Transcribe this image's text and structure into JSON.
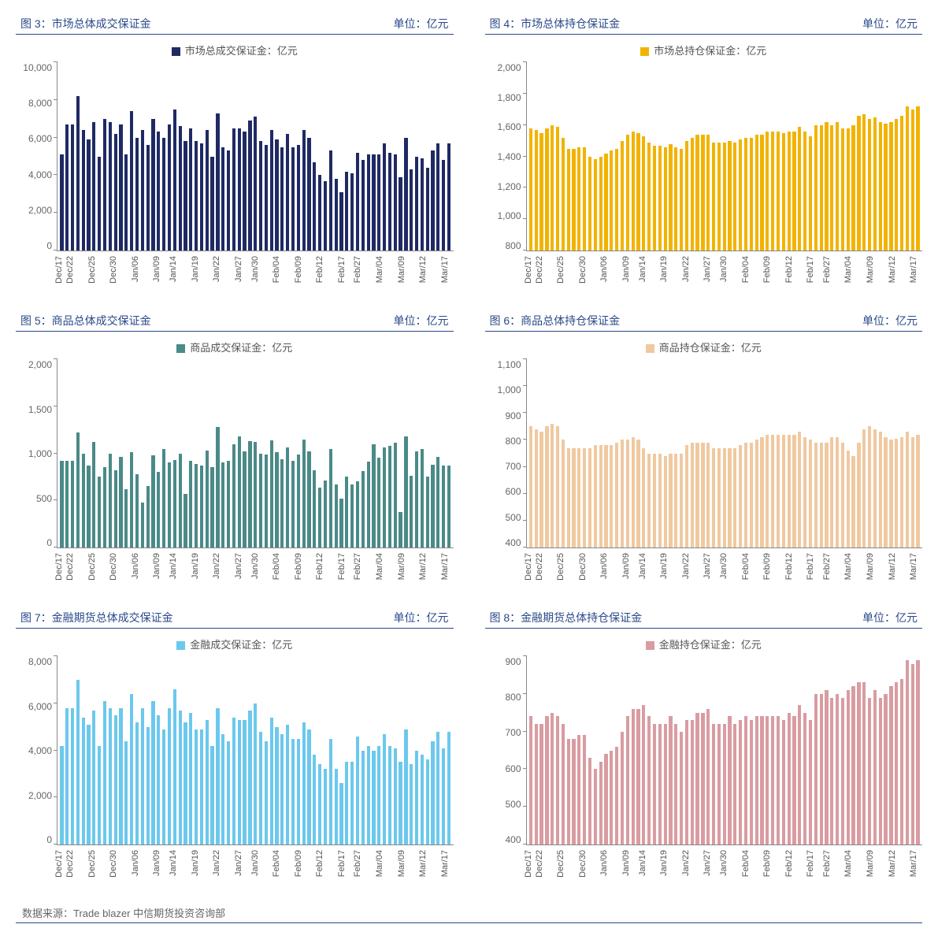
{
  "footer": "数据来源：Trade blazer  中信期货投资咨询部",
  "title_border_color": "#2a4a8a",
  "title_text_color": "#2a4a8a",
  "x_categories": [
    "Dec/17",
    "Dec/22",
    "Dec/25",
    "Dec/30",
    "Jan/06",
    "Jan/09",
    "Jan/14",
    "Jan/19",
    "Jan/22",
    "Jan/27",
    "Jan/30",
    "Feb/04",
    "Feb/09",
    "Feb/12",
    "Feb/17",
    "Feb/27",
    "Mar/04",
    "Mar/09",
    "Mar/12",
    "Mar/17"
  ],
  "charts": [
    {
      "id": "chart3",
      "type": "bar",
      "title": "图 3：市场总体成交保证金",
      "unit": "单位：亿元",
      "legend": "市场总成交保证金：亿元",
      "color": "#1f2a64",
      "y_min": 0,
      "y_max": 10000,
      "y_ticks": [
        0,
        2000,
        4000,
        6000,
        8000,
        10000
      ],
      "y_tick_labels": [
        "0",
        "2,000",
        "4,000",
        "6,000",
        "8,000",
        "10,000"
      ],
      "values": [
        5100,
        6700,
        6700,
        8200,
        6400,
        5900,
        6800,
        5000,
        7000,
        6800,
        6200,
        6700,
        5100,
        7400,
        6000,
        6400,
        5600,
        7000,
        6300,
        6000,
        6700,
        7500,
        6600,
        5800,
        6500,
        5800,
        5700,
        6400,
        5000,
        7300,
        5500,
        5300,
        6500,
        6500,
        6300,
        6900,
        7100,
        5800,
        5600,
        6400,
        5900,
        5500,
        6200,
        5500,
        5600,
        6400,
        6000,
        4700,
        4000,
        3700,
        5300,
        3800,
        3100,
        4200,
        4100,
        5200,
        4800,
        5100,
        5100,
        5100,
        5700,
        5200,
        5100,
        3900,
        6000,
        4300,
        5000,
        4900,
        4400,
        5300,
        5700,
        4800,
        5700
      ]
    },
    {
      "id": "chart4",
      "type": "bar",
      "title": "图 4：市场总体持仓保证金",
      "unit": "单位：亿元",
      "legend": "市场总持仓保证金：亿元",
      "color": "#f2b300",
      "y_min": 800,
      "y_max": 2000,
      "y_ticks": [
        800,
        1000,
        1200,
        1400,
        1600,
        1800,
        2000
      ],
      "y_tick_labels": [
        "800",
        "1,000",
        "1,200",
        "1,400",
        "1,600",
        "1,800",
        "2,000"
      ],
      "values": [
        1580,
        1570,
        1550,
        1580,
        1600,
        1590,
        1520,
        1450,
        1450,
        1460,
        1460,
        1400,
        1380,
        1400,
        1420,
        1440,
        1450,
        1500,
        1540,
        1560,
        1550,
        1530,
        1490,
        1470,
        1470,
        1460,
        1480,
        1460,
        1450,
        1500,
        1520,
        1540,
        1540,
        1540,
        1490,
        1490,
        1490,
        1500,
        1490,
        1510,
        1520,
        1520,
        1540,
        1540,
        1560,
        1560,
        1560,
        1550,
        1560,
        1560,
        1590,
        1560,
        1530,
        1600,
        1600,
        1620,
        1600,
        1620,
        1580,
        1580,
        1600,
        1660,
        1670,
        1640,
        1650,
        1620,
        1610,
        1620,
        1640,
        1660,
        1720,
        1700,
        1720
      ]
    },
    {
      "id": "chart5",
      "type": "bar",
      "title": "图 5：商品总体成交保证金",
      "unit": "单位：亿元",
      "legend": "商品成交保证金：亿元",
      "color": "#4a8a88",
      "y_min": 0,
      "y_max": 2000,
      "y_ticks": [
        0,
        500,
        1000,
        1500,
        2000
      ],
      "y_tick_labels": [
        "0",
        "500",
        "1,000",
        "1,500",
        "2,000"
      ],
      "values": [
        920,
        920,
        920,
        1220,
        1000,
        870,
        1120,
        750,
        850,
        1000,
        820,
        960,
        620,
        1010,
        780,
        480,
        650,
        980,
        800,
        1050,
        900,
        930,
        1000,
        570,
        920,
        890,
        870,
        1030,
        850,
        1280,
        900,
        920,
        1100,
        1180,
        1020,
        1130,
        1120,
        1000,
        990,
        1140,
        1010,
        940,
        1060,
        920,
        990,
        1150,
        1020,
        820,
        640,
        710,
        1050,
        670,
        520,
        750,
        670,
        700,
        810,
        910,
        1100,
        950,
        1060,
        1080,
        1110,
        380,
        1180,
        760,
        1020,
        1050,
        750,
        880,
        960,
        870,
        870
      ]
    },
    {
      "id": "chart6",
      "type": "bar",
      "title": "图 6：商品总体持仓保证金",
      "unit": "单位：亿元",
      "legend": "商品持仓保证金：亿元",
      "color": "#f0c9a0",
      "y_min": 400,
      "y_max": 1100,
      "y_ticks": [
        400,
        500,
        600,
        700,
        800,
        900,
        1000,
        1100
      ],
      "y_tick_labels": [
        "400",
        "500",
        "600",
        "700",
        "800",
        "900",
        "1,000",
        "1,100"
      ],
      "values": [
        850,
        840,
        830,
        850,
        860,
        850,
        800,
        770,
        770,
        770,
        770,
        770,
        780,
        780,
        780,
        780,
        790,
        800,
        800,
        810,
        800,
        770,
        750,
        750,
        750,
        740,
        750,
        750,
        750,
        780,
        790,
        790,
        790,
        790,
        770,
        770,
        770,
        770,
        770,
        780,
        790,
        790,
        800,
        810,
        820,
        820,
        820,
        820,
        820,
        820,
        830,
        810,
        800,
        790,
        790,
        790,
        810,
        810,
        790,
        760,
        740,
        790,
        840,
        850,
        840,
        830,
        810,
        800,
        805,
        810,
        830,
        810,
        820
      ]
    },
    {
      "id": "chart7",
      "type": "bar",
      "title": "图 7：金融期货总体成交保证金",
      "unit": "单位：亿元",
      "legend": "金融成交保证金：亿元",
      "color": "#6cc8ed",
      "y_min": 0,
      "y_max": 8000,
      "y_ticks": [
        0,
        2000,
        4000,
        6000,
        8000
      ],
      "y_tick_labels": [
        "0",
        "2,000",
        "4,000",
        "6,000",
        "8,000"
      ],
      "values": [
        4200,
        5800,
        5800,
        7000,
        5400,
        5100,
        5700,
        4200,
        6100,
        5800,
        5500,
        5800,
        4400,
        6400,
        5200,
        5800,
        5000,
        6100,
        5500,
        4900,
        5800,
        6600,
        5700,
        5200,
        5600,
        4900,
        4900,
        5300,
        4200,
        5800,
        4700,
        4400,
        5400,
        5300,
        5300,
        5700,
        6000,
        4800,
        4400,
        5400,
        5000,
        4700,
        5100,
        4500,
        4500,
        5200,
        4900,
        3800,
        3400,
        3200,
        4500,
        3200,
        2600,
        3500,
        3500,
        4600,
        4000,
        4200,
        4000,
        4200,
        4700,
        4200,
        4100,
        3500,
        4900,
        3400,
        4000,
        3800,
        3600,
        4400,
        4800,
        4100,
        4800
      ]
    },
    {
      "id": "chart8",
      "type": "bar",
      "title": "图 8：金融期货总体持仓保证金",
      "unit": "单位：亿元",
      "legend": "金融持仓保证金：亿元",
      "color": "#d99ca1",
      "y_min": 400,
      "y_max": 900,
      "y_ticks": [
        400,
        500,
        600,
        700,
        800,
        900
      ],
      "y_tick_labels": [
        "400",
        "500",
        "600",
        "700",
        "800",
        "900"
      ],
      "values": [
        740,
        720,
        720,
        740,
        750,
        740,
        720,
        680,
        680,
        690,
        690,
        630,
        600,
        620,
        640,
        650,
        660,
        700,
        740,
        760,
        760,
        770,
        740,
        720,
        720,
        720,
        740,
        720,
        700,
        730,
        730,
        750,
        750,
        760,
        720,
        720,
        720,
        740,
        720,
        730,
        740,
        730,
        740,
        740,
        740,
        740,
        740,
        730,
        750,
        740,
        770,
        750,
        730,
        800,
        800,
        810,
        790,
        800,
        790,
        810,
        820,
        830,
        830,
        790,
        810,
        790,
        800,
        820,
        830,
        840,
        890,
        880,
        890
      ]
    }
  ]
}
